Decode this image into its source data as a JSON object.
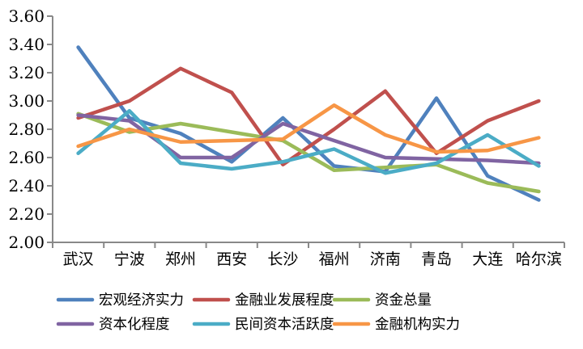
{
  "chart_data": {
    "type": "line",
    "title": "",
    "xlabel": "",
    "ylabel": "",
    "categories": [
      "武汉",
      "宁波",
      "郑州",
      "西安",
      "长沙",
      "福州",
      "济南",
      "青岛",
      "大连",
      "哈尔滨"
    ],
    "series": [
      {
        "name": "宏观经济实力",
        "color": "#4F81BD",
        "values": [
          3.38,
          2.88,
          2.77,
          2.57,
          2.88,
          2.54,
          2.5,
          3.02,
          2.47,
          2.3
        ]
      },
      {
        "name": "金融业发展程度",
        "color": "#C0504D",
        "values": [
          2.88,
          3.0,
          3.23,
          3.06,
          2.55,
          2.8,
          3.07,
          2.63,
          2.86,
          3.0
        ]
      },
      {
        "name": "资金总量",
        "color": "#9BBB59",
        "values": [
          2.91,
          2.78,
          2.84,
          2.78,
          2.72,
          2.51,
          2.53,
          2.55,
          2.42,
          2.36
        ]
      },
      {
        "name": "资本化程度",
        "color": "#8064A2",
        "values": [
          2.9,
          2.86,
          2.6,
          2.6,
          2.84,
          2.72,
          2.6,
          2.59,
          2.58,
          2.56
        ]
      },
      {
        "name": "民间资本活跃度",
        "color": "#4BACC6",
        "values": [
          2.63,
          2.93,
          2.56,
          2.52,
          2.57,
          2.66,
          2.49,
          2.56,
          2.76,
          2.54
        ]
      },
      {
        "name": "金融机构实力",
        "color": "#F79646",
        "values": [
          2.68,
          2.8,
          2.71,
          2.72,
          2.73,
          2.97,
          2.76,
          2.64,
          2.65,
          2.74
        ]
      }
    ],
    "ylim": [
      2.0,
      3.6
    ],
    "ytick_labels": [
      "2.00",
      "2.20",
      "2.40",
      "2.60",
      "2.80",
      "3.00",
      "3.20",
      "3.40",
      "3.60"
    ],
    "grid": false,
    "legend_position": "bottom",
    "legend_rows": 2,
    "legend_columns": 3
  },
  "colors": {
    "background": "#FFFFFF",
    "axis": "#898989",
    "text": "#000000"
  }
}
